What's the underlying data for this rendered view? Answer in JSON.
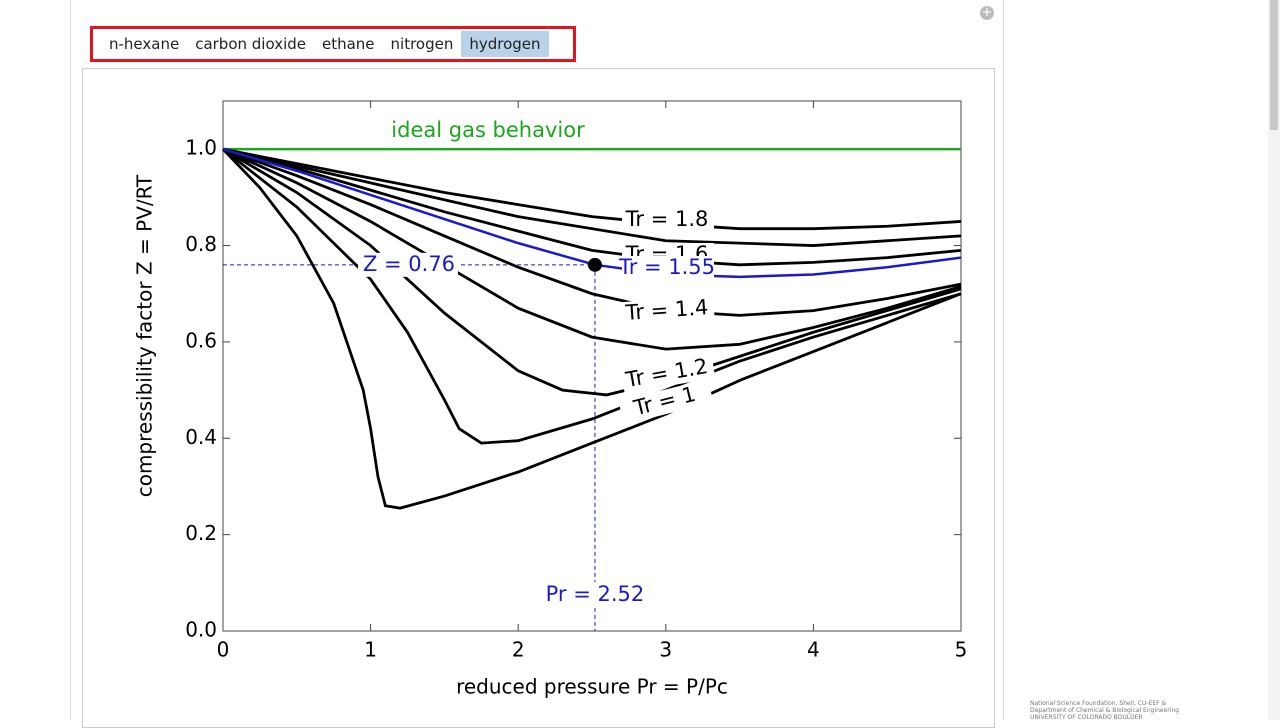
{
  "tabs": [
    "n-hexane",
    "carbon dioxide",
    "ethane",
    "nitrogen",
    "hydrogen"
  ],
  "selected_tab": "hydrogen",
  "credit": [
    "National Science Foundation, Shell, CU-EEF &",
    "Department of Chemical & Biological Engineering",
    "UNIVERSITY OF COLORADO BOULDER"
  ],
  "chart_data": {
    "type": "line",
    "x_label": "reduced pressure Pr = P/Pc",
    "y_label": "compressibility factor Z = PV/RT",
    "xlim": [
      0,
      5
    ],
    "ylim": [
      0,
      1.1
    ],
    "xticks": [
      0,
      1,
      2,
      3,
      4,
      5
    ],
    "yticks": [
      {
        "value": 0,
        "label": "0.0"
      },
      0.2,
      0.4,
      0.6,
      0.8,
      {
        "value": 1,
        "label": "1.0"
      }
    ],
    "series": [
      {
        "name": "ideal gas behavior",
        "color": "#1aa81a",
        "x": [
          0,
          5
        ],
        "values": [
          1,
          1
        ]
      },
      {
        "name": "Tr = 1",
        "color": "#000000",
        "x": [
          0,
          0.25,
          0.5,
          0.75,
          0.95,
          1.0,
          1.05,
          1.1,
          1.2,
          1.5,
          2,
          2.5,
          3,
          3.5,
          4,
          4.5,
          5
        ],
        "values": [
          1,
          0.92,
          0.82,
          0.68,
          0.5,
          0.42,
          0.32,
          0.26,
          0.255,
          0.28,
          0.33,
          0.39,
          0.45,
          0.52,
          0.58,
          0.64,
          0.7
        ]
      },
      {
        "color": "#000000",
        "x": [
          0,
          0.5,
          1,
          1.25,
          1.5,
          1.6,
          1.75,
          2,
          2.5,
          3,
          3.5,
          4,
          4.5,
          5
        ],
        "values": [
          1,
          0.88,
          0.73,
          0.62,
          0.48,
          0.42,
          0.39,
          0.395,
          0.44,
          0.5,
          0.56,
          0.61,
          0.655,
          0.7
        ]
      },
      {
        "name": "Tr = 1.2",
        "color": "#000000",
        "x": [
          0,
          0.5,
          1,
          1.5,
          2,
          2.3,
          2.6,
          3,
          3.5,
          4,
          4.5,
          5
        ],
        "values": [
          1,
          0.91,
          0.8,
          0.66,
          0.54,
          0.5,
          0.49,
          0.52,
          0.57,
          0.62,
          0.665,
          0.71
        ]
      },
      {
        "color": "#000000",
        "x": [
          0,
          0.5,
          1,
          1.5,
          2,
          2.5,
          3,
          3.5,
          4,
          4.5,
          5
        ],
        "values": [
          1,
          0.93,
          0.85,
          0.76,
          0.67,
          0.61,
          0.585,
          0.595,
          0.63,
          0.67,
          0.715
        ]
      },
      {
        "name": "Tr = 1.4",
        "color": "#000000",
        "x": [
          0,
          0.5,
          1,
          1.5,
          2,
          2.5,
          3,
          3.5,
          4,
          4.5,
          5
        ],
        "values": [
          1,
          0.945,
          0.885,
          0.82,
          0.755,
          0.7,
          0.665,
          0.655,
          0.665,
          0.69,
          0.72
        ]
      },
      {
        "name": "Tr = 1.6",
        "color": "#000000",
        "x": [
          0,
          0.5,
          1,
          1.5,
          2,
          2.5,
          3,
          3.5,
          4,
          4.5,
          5
        ],
        "values": [
          1,
          0.96,
          0.915,
          0.87,
          0.83,
          0.79,
          0.77,
          0.76,
          0.765,
          0.775,
          0.79
        ]
      },
      {
        "color": "#000000",
        "x": [
          0,
          1,
          2,
          3,
          4,
          5
        ],
        "values": [
          1,
          0.93,
          0.86,
          0.81,
          0.8,
          0.82
        ]
      },
      {
        "name": "Tr = 1.8",
        "color": "#000000",
        "x": [
          0,
          0.5,
          1,
          1.5,
          2,
          2.5,
          3,
          3.5,
          4,
          4.5,
          5
        ],
        "values": [
          1,
          0.97,
          0.94,
          0.91,
          0.885,
          0.86,
          0.845,
          0.835,
          0.835,
          0.84,
          0.85
        ]
      },
      {
        "name": "Tr = 1.55",
        "color": "#1a1acc",
        "x": [
          0,
          0.5,
          1,
          1.5,
          2,
          2.52,
          3,
          3.5,
          4,
          4.5,
          5
        ],
        "values": [
          1,
          0.955,
          0.905,
          0.855,
          0.805,
          0.76,
          0.74,
          0.735,
          0.74,
          0.755,
          0.775
        ]
      }
    ],
    "point": {
      "x": 2.52,
      "y": 0.76,
      "x_label": "Pr = 2.52",
      "y_label": "Z = 0.76",
      "color": "#1a1acc"
    }
  }
}
